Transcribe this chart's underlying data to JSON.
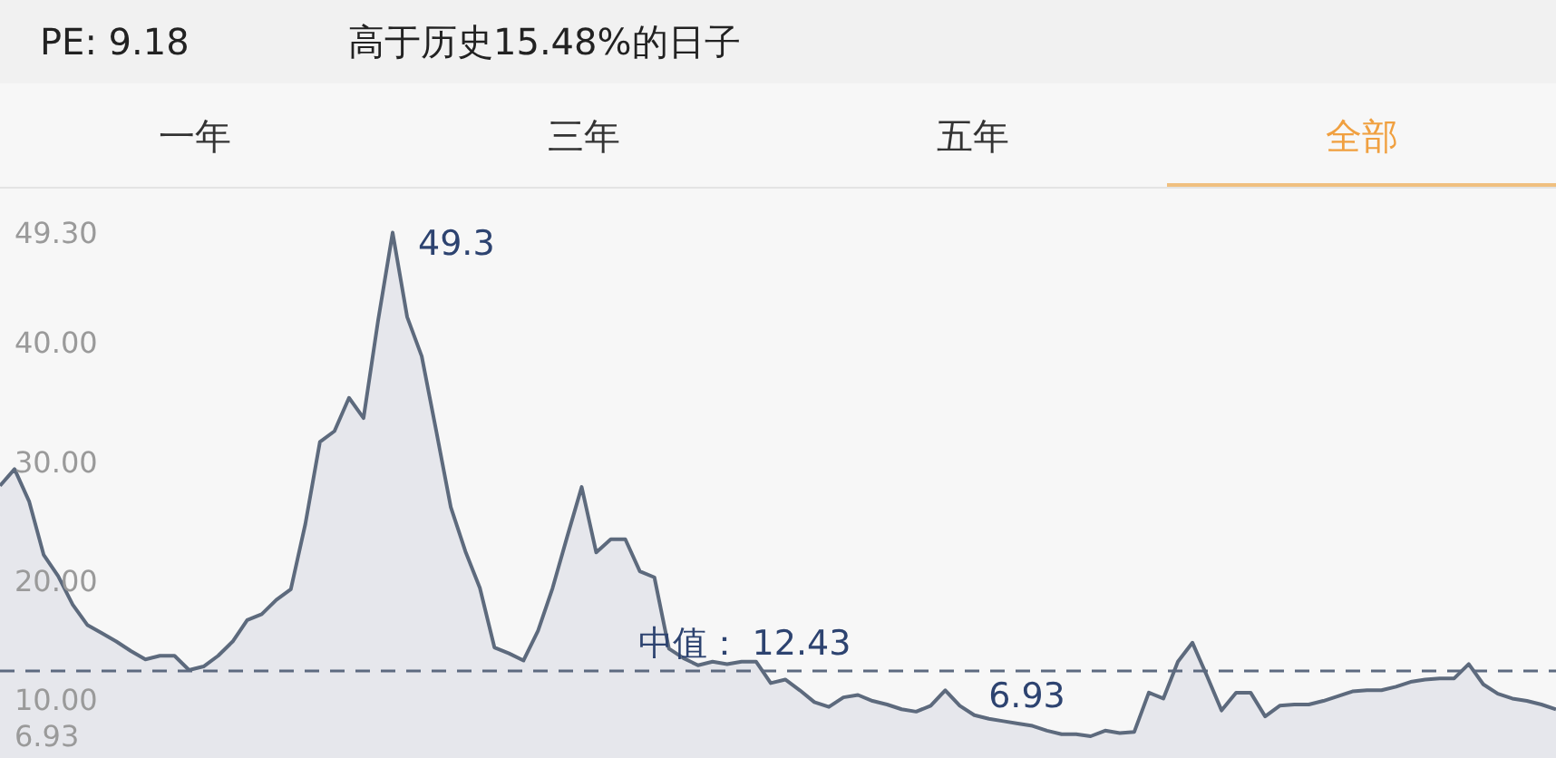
{
  "chart_data": {
    "type": "area",
    "title": "PE: 9.18",
    "subtitle": "高于历史15.48%的日子",
    "annotations": [
      "一年",
      "三年",
      "五年",
      "全部"
    ],
    "categories": [
      null,
      null,
      null,
      null,
      null,
      null,
      null,
      null,
      null,
      null,
      null,
      null,
      null,
      null,
      null,
      null,
      null,
      null,
      null,
      null,
      null,
      null,
      null,
      null,
      null,
      null,
      null,
      null,
      null,
      null,
      null,
      null,
      null,
      null,
      null,
      null,
      null,
      null,
      null,
      null,
      null,
      null,
      null,
      null,
      null,
      null,
      null,
      null,
      null,
      null,
      null,
      null,
      null,
      null,
      null,
      null,
      null,
      null,
      null,
      null,
      null,
      null,
      null,
      null,
      null,
      null,
      null,
      null,
      null,
      null,
      null,
      null,
      null,
      null,
      null,
      null,
      null,
      null,
      null,
      null,
      null,
      null,
      null,
      null,
      null,
      null,
      null,
      null,
      null,
      null,
      null,
      null,
      null,
      null,
      null,
      null,
      null,
      null,
      null,
      null,
      null,
      null,
      null,
      null,
      null,
      null,
      null,
      null
    ],
    "series": [
      {
        "color": "#5d6a7d",
        "values": [
          28.0,
          29.4,
          26.7,
          22.2,
          20.4,
          18.0,
          16.3,
          15.6,
          14.9,
          14.1,
          13.4,
          13.7,
          13.7,
          12.5,
          12.8,
          13.7,
          14.9,
          16.7,
          17.2,
          18.4,
          19.3,
          24.8,
          31.7,
          32.6,
          35.4,
          33.7,
          41.9,
          49.3,
          42.2,
          38.9,
          32.6,
          26.2,
          22.5,
          19.4,
          14.4,
          13.9,
          13.3,
          15.8,
          19.4,
          23.7,
          27.9,
          22.4,
          23.5,
          23.5,
          20.8,
          20.3,
          14.3,
          13.5,
          12.9,
          13.2,
          13.0,
          13.2,
          13.2,
          11.4,
          11.7,
          10.8,
          9.8,
          9.4,
          10.2,
          10.4,
          9.9,
          9.6,
          9.2,
          9.0,
          9.5,
          10.8,
          9.5,
          8.7,
          8.4,
          8.2,
          8.0,
          7.8,
          7.4,
          7.1,
          7.1,
          6.93,
          7.4,
          7.2,
          7.3,
          10.6,
          10.1,
          13.2,
          14.8,
          12.0,
          9.1,
          10.6,
          10.6,
          8.6,
          9.5,
          9.6,
          9.6,
          9.9,
          10.3,
          10.7,
          10.8,
          10.8,
          11.1,
          11.5,
          11.7,
          11.8,
          11.8,
          13.0,
          11.3,
          10.5,
          10.1,
          9.9,
          9.6,
          9.2
        ],
        "value_labels": [
          null,
          null,
          null,
          null,
          null,
          null,
          null,
          null,
          null,
          null,
          null,
          null,
          null,
          null,
          null,
          null,
          null,
          null,
          null,
          null,
          null,
          null,
          null,
          null,
          null,
          null,
          null,
          "49.3",
          null,
          null,
          null,
          null,
          null,
          null,
          null,
          null,
          null,
          null,
          null,
          null,
          null,
          null,
          null,
          null,
          null,
          null,
          null,
          null,
          null,
          null,
          null,
          null,
          null,
          null,
          null,
          null,
          null,
          null,
          null,
          null,
          null,
          null,
          null,
          null,
          null,
          null,
          null,
          null,
          null,
          null,
          null,
          null,
          null,
          null,
          null,
          "6.93",
          null,
          null,
          null,
          null,
          null,
          null,
          null,
          null,
          null,
          null,
          null,
          null,
          null,
          null,
          null,
          null,
          null,
          null,
          null,
          null,
          null,
          null,
          null,
          null,
          null,
          null,
          null,
          null,
          null,
          null,
          null,
          null
        ]
      }
    ],
    "ylim": [
      6.93,
      52.7
    ],
    "yticks": [
      {
        "value": 49.3,
        "label": "49.30"
      },
      {
        "value": 40,
        "label": "40.00"
      },
      {
        "value": 30,
        "label": "30.00"
      },
      {
        "value": 20,
        "label": "20.00"
      },
      {
        "value": 10,
        "label": "10.00"
      },
      6.93
    ],
    "ref_lines": [
      {
        "axis": "y",
        "value": 12.43,
        "label": "中值： 12.43",
        "color": "#5d6a80",
        "line_style": "dashed"
      }
    ],
    "grid": false,
    "tick_labels": "y"
  }
}
